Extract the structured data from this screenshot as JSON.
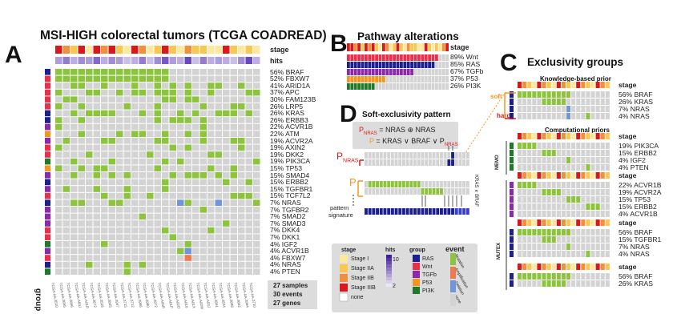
{
  "panels": {
    "a": "A",
    "b": "B",
    "c": "C",
    "d": "D"
  },
  "panel_a": {
    "title": "MSI-HIGH colorectal tumors (TCGA COADREAD)",
    "stage_label": "stage",
    "hits_label": "hits",
    "group_label": "group",
    "genes": [
      {
        "pct": "56%",
        "name": "BRAF"
      },
      {
        "pct": "52%",
        "name": "FBXW7"
      },
      {
        "pct": "41%",
        "name": "ARID1A"
      },
      {
        "pct": "37%",
        "name": "APC"
      },
      {
        "pct": "30%",
        "name": "FAM123B"
      },
      {
        "pct": "26%",
        "name": "LRP5"
      },
      {
        "pct": "26%",
        "name": "KRAS"
      },
      {
        "pct": "26%",
        "name": "ERBB3"
      },
      {
        "pct": "22%",
        "name": "ACVR1B"
      },
      {
        "pct": "22%",
        "name": "ATM"
      },
      {
        "pct": "19%",
        "name": "ACVR2A"
      },
      {
        "pct": "19%",
        "name": "AXIN2"
      },
      {
        "pct": "19%",
        "name": "DKK2"
      },
      {
        "pct": "19%",
        "name": "PIK3CA"
      },
      {
        "pct": "15%",
        "name": "TP53"
      },
      {
        "pct": "15%",
        "name": "SMAD4"
      },
      {
        "pct": "15%",
        "name": "ERBB2"
      },
      {
        "pct": "15%",
        "name": "TGFBR1"
      },
      {
        "pct": "15%",
        "name": "TCF7L2"
      },
      {
        "pct": "7%",
        "name": "NRAS"
      },
      {
        "pct": "7%",
        "name": "TGFBR2"
      },
      {
        "pct": "7%",
        "name": "SMAD2"
      },
      {
        "pct": "7%",
        "name": "SMAD3"
      },
      {
        "pct": "7%",
        "name": "DKK4"
      },
      {
        "pct": "7%",
        "name": "DKK1"
      },
      {
        "pct": "4%",
        "name": "IGF2"
      },
      {
        "pct": "4%",
        "name": "ACVR1B"
      },
      {
        "pct": "4%",
        "name": "FBXW7"
      },
      {
        "pct": "4%",
        "name": "NRAS"
      },
      {
        "pct": "4%",
        "name": "PTEN"
      }
    ],
    "samples": [
      "TCGA-AA-3510",
      "TCGA-AA-3655",
      "TCGA-AA-3666",
      "TCGA-AA-A00J",
      "TCGA-AA-A01R",
      "TCGA-AA-3672",
      "TCGA-AA-3516",
      "TCGA-AA-3845",
      "TCGA-AA-3947",
      "TCGA-AA-3715",
      "TCGA-AA-3712",
      "TCGA-AA-3966",
      "TCGA-AA-3980",
      "TCGA-AA-3972",
      "TCGA-AA-A00R",
      "TCGA-AA-A01P",
      "TCGA-AA-A02O",
      "TCGA-AA-A010",
      "TCGA-AA-A01X",
      "TCGA-AA-A02W",
      "TCGA-AA-A03J",
      "TCGA-AA-3561",
      "TCGA-AA-3534",
      "TCGA-AA-3688",
      "TCGA-AA-3662",
      "TCGA-AA-3964",
      "TCGA-AA-3710"
    ],
    "summary": [
      "27 samples",
      "30 events",
      "27 genes"
    ]
  },
  "panel_b": {
    "title": "Pathway alterations",
    "stage_label": "stage",
    "rows": [
      {
        "pct": "89%",
        "name": "Wnt"
      },
      {
        "pct": "85%",
        "name": "RAS"
      },
      {
        "pct": "67%",
        "name": "TGFb"
      },
      {
        "pct": "37%",
        "name": "P53"
      },
      {
        "pct": "26%",
        "name": "PI3K"
      }
    ]
  },
  "panel_c": {
    "title": "Exclusivity groups",
    "knowledge_title": "Knowledge-based prior",
    "computational_title": "Computational priors",
    "soft_label": "soft",
    "hard_label": "hard",
    "memo_label": "MEMO",
    "mutex_label": "MUTEX",
    "stage_label": "stage",
    "group1": [
      {
        "pct": "56%",
        "name": "BRAF"
      },
      {
        "pct": "26%",
        "name": "KRAS"
      },
      {
        "pct": "7%",
        "name": "NRAS"
      },
      {
        "pct": "4%",
        "name": "NRAS"
      }
    ],
    "group2": [
      {
        "pct": "19%",
        "name": "PIK3CA"
      },
      {
        "pct": "15%",
        "name": "ERBB2"
      },
      {
        "pct": "4%",
        "name": "IGF2"
      },
      {
        "pct": "4%",
        "name": "PTEN"
      }
    ],
    "group3": [
      {
        "pct": "22%",
        "name": "ACVR1B"
      },
      {
        "pct": "19%",
        "name": "ACVR2A"
      },
      {
        "pct": "15%",
        "name": "TP53"
      },
      {
        "pct": "15%",
        "name": "ERBB2"
      },
      {
        "pct": "4%",
        "name": "ACVR1B"
      }
    ],
    "group4": [
      {
        "pct": "56%",
        "name": "BRAF"
      },
      {
        "pct": "15%",
        "name": "TGFBR1"
      },
      {
        "pct": "7%",
        "name": "NRAS"
      },
      {
        "pct": "4%",
        "name": "NRAS"
      }
    ],
    "group5": [
      {
        "pct": "56%",
        "name": "BRAF"
      },
      {
        "pct": "26%",
        "name": "KRAS"
      }
    ]
  },
  "panel_d": {
    "title": "Soft-exclusivity pattern",
    "eq1_lhs": "P",
    "eq1_lhs_sub": "NRAS",
    "eq1_rhs": "= NRAS ⊕ NRAS",
    "eq2_lhs": "P",
    "eq2_rhs": "= KRAS ∨ BRAF ∨ P",
    "eq2_rhs_sub": "NRAS",
    "p_nras_label": "P",
    "p_nras_sub": "NRAS",
    "p_label": "P",
    "side_label": "KRAS ∨ BRAF",
    "pattern_label": "pattern",
    "signature_label": "signature"
  },
  "legend": {
    "stage_title": "stage",
    "stages": [
      "Stage I",
      "Stage IIA",
      "Stage IIB",
      "Stage IIIB",
      "none"
    ],
    "hits_title": "hits",
    "hits_max": "10",
    "hits_min": "2",
    "group_title": "group",
    "groups": [
      "RAS",
      "Wnt",
      "TGFb",
      "P53",
      "PI3K"
    ],
    "event_title": "event",
    "events": [
      "Mutation",
      "Amplification",
      "Deletion",
      "none"
    ]
  },
  "colors": {
    "mutation": "#8cc43e",
    "amplification": "#f07a50",
    "deletion": "#6f96dc",
    "none": "#d3d3d3",
    "ras": "#1b1f8f",
    "wnt": "#e8304a",
    "tgfb": "#8b2aa8",
    "p53": "#f5961e",
    "pi3k": "#1d7a2a",
    "stage_i": "#fde8a0",
    "stage_iia": "#f9c74f",
    "stage_iib": "#f18f3b",
    "stage_iiib": "#d7191c"
  }
}
